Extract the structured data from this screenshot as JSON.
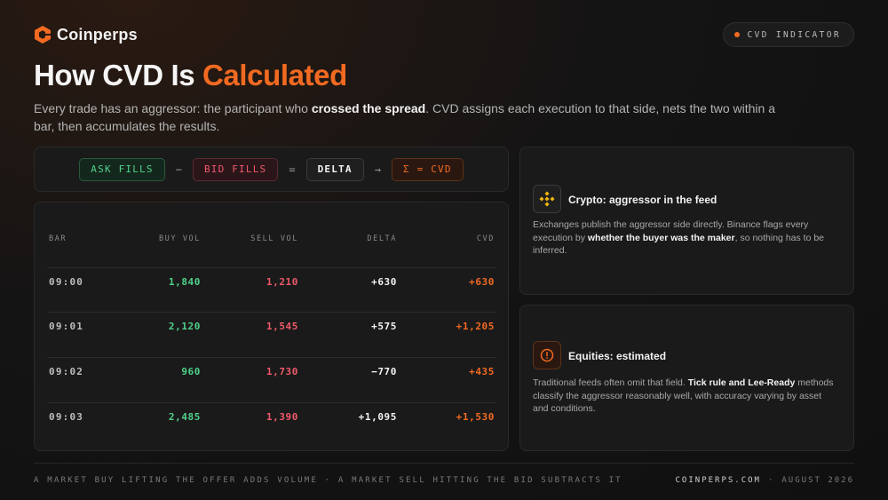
{
  "brand": {
    "name": "Coinperps",
    "logo_icon": "coinperps-logo-icon",
    "accent": "#f26a21"
  },
  "badge": {
    "label": "CVD INDICATOR"
  },
  "title": {
    "prefix": "How CVD Is ",
    "accent": "Calculated"
  },
  "subtitle": {
    "part1": "Every trade has an aggressor: the participant who ",
    "bold": "crossed the spread",
    "part2": ". CVD assigns each execution to that side, nets the two within a bar, then accumulates the results."
  },
  "formula": {
    "ask": "ASK FILLS",
    "minus": "−",
    "bid": "BID FILLS",
    "equals": "=",
    "delta": "DELTA",
    "arrow": "→",
    "cvd": "Σ = CVD"
  },
  "table": {
    "headers": [
      "BAR",
      "BUY VOL",
      "SELL VOL",
      "DELTA",
      "CVD"
    ],
    "rows": [
      {
        "bar": "09:00",
        "buy": "1,840",
        "sell": "1,210",
        "delta": "+630",
        "cvd": "+630"
      },
      {
        "bar": "09:01",
        "buy": "2,120",
        "sell": "1,545",
        "delta": "+575",
        "cvd": "+1,205"
      },
      {
        "bar": "09:02",
        "buy": "960",
        "sell": "1,730",
        "delta": "−770",
        "cvd": "+435"
      },
      {
        "bar": "09:03",
        "buy": "2,485",
        "sell": "1,390",
        "delta": "+1,095",
        "cvd": "+1,530"
      }
    ]
  },
  "cards": {
    "crypto": {
      "icon": "binance-icon",
      "title": "Crypto: aggressor in the feed",
      "body1": "Exchanges publish the aggressor side directly. Binance flags every execution by ",
      "bold": "whether the buyer was the maker",
      "body2": ", so nothing has to be inferred."
    },
    "equities": {
      "icon": "alert-circle-icon",
      "title": "Equities: estimated",
      "body1": "Traditional feeds often omit that field. ",
      "bold": "Tick rule and Lee-Ready",
      "body2": " methods classify the aggressor reasonably well, with accuracy varying by asset and conditions."
    }
  },
  "footer": {
    "left": "A MARKET BUY LIFTING THE OFFER ADDS VOLUME · A MARKET SELL HITTING THE BID SUBTRACTS IT",
    "site": "COINPERPS.COM",
    "sep": "·",
    "date": "AUGUST 2026"
  }
}
